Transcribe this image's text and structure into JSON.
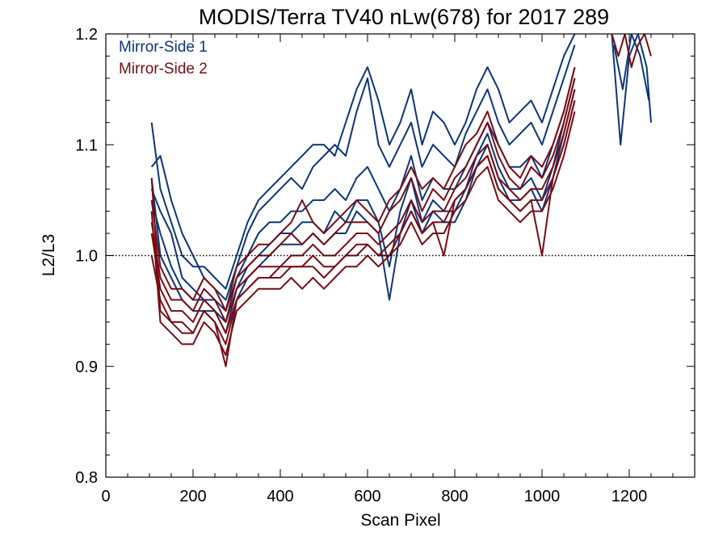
{
  "chart_data": {
    "type": "line",
    "title": "MODIS/Terra TV40 nLw(678) for 2017 289",
    "xlabel": "Scan Pixel",
    "ylabel": "L2/L3",
    "xlim": [
      0,
      1350
    ],
    "ylim": [
      0.8,
      1.2
    ],
    "x_ticks": [
      0,
      200,
      400,
      600,
      800,
      1000,
      1200
    ],
    "y_ticks": [
      0.8,
      0.9,
      1.0,
      1.1,
      1.2
    ],
    "reference_line": {
      "y": 1.0,
      "style": "dotted"
    },
    "grid": false,
    "legend_position": "top-left",
    "colors": {
      "mirror_side_1": "#0c3577",
      "mirror_side_2": "#780c14"
    },
    "series": [
      {
        "name": "Mirror-Side 1",
        "color": "#0c3577",
        "lines": [
          {
            "x": [
              105,
              125,
              150,
              175,
              200,
              225,
              250,
              275,
              300,
              325,
              350,
              375,
              400,
              425,
              450,
              475,
              500,
              525,
              550,
              575,
              600,
              625,
              650,
              675,
              700,
              725,
              750,
              775,
              800,
              825,
              850,
              875,
              900,
              925,
              950,
              975,
              1000,
              1025,
              1050,
              1075
            ],
            "y": [
              1.12,
              1.06,
              1.03,
              1.0,
              0.99,
              0.99,
              0.98,
              0.97,
              1.0,
              1.03,
              1.05,
              1.06,
              1.07,
              1.08,
              1.09,
              1.1,
              1.1,
              1.09,
              1.12,
              1.15,
              1.17,
              1.14,
              1.1,
              1.12,
              1.15,
              1.1,
              1.13,
              1.12,
              1.1,
              1.12,
              1.15,
              1.17,
              1.15,
              1.12,
              1.13,
              1.14,
              1.12,
              1.15,
              1.18,
              1.2
            ]
          },
          {
            "x": [
              105,
              125,
              150,
              175,
              200,
              225,
              250,
              275,
              300,
              325,
              350,
              375,
              400,
              425,
              450,
              475,
              500,
              525,
              550,
              575,
              600,
              625,
              650,
              675,
              700,
              725,
              750,
              775,
              800,
              825,
              850,
              875,
              900,
              925,
              950,
              975,
              1000,
              1025,
              1050,
              1075
            ],
            "y": [
              1.08,
              1.09,
              1.05,
              1.02,
              1.0,
              0.98,
              0.97,
              0.96,
              0.99,
              1.02,
              1.04,
              1.05,
              1.06,
              1.07,
              1.06,
              1.08,
              1.09,
              1.1,
              1.09,
              1.13,
              1.16,
              1.1,
              1.08,
              1.1,
              1.12,
              1.08,
              1.1,
              1.09,
              1.08,
              1.11,
              1.13,
              1.15,
              1.12,
              1.1,
              1.11,
              1.12,
              1.1,
              1.13,
              1.16,
              1.19
            ]
          },
          {
            "x": [
              105,
              125,
              150,
              175,
              200,
              225,
              250,
              275,
              300,
              325,
              350,
              375,
              400,
              425,
              450,
              475,
              500,
              525,
              550,
              575,
              600,
              625,
              650,
              675,
              700,
              725,
              750,
              775,
              800,
              825,
              850,
              875,
              900,
              925,
              950,
              975,
              1000,
              1025,
              1050,
              1075
            ],
            "y": [
              1.06,
              1.04,
              1.02,
              0.98,
              0.97,
              0.96,
              0.96,
              0.95,
              0.98,
              1.0,
              1.02,
              1.03,
              1.03,
              1.04,
              1.04,
              1.05,
              1.05,
              1.06,
              1.05,
              1.07,
              1.08,
              1.06,
              1.04,
              1.06,
              1.09,
              1.05,
              1.07,
              1.06,
              1.06,
              1.08,
              1.1,
              1.12,
              1.1,
              1.08,
              1.08,
              1.09,
              1.07,
              1.1,
              1.13,
              1.17
            ]
          },
          {
            "x": [
              105,
              125,
              150,
              175,
              200,
              225,
              250,
              275,
              300,
              325,
              350,
              375,
              400,
              425,
              450,
              475,
              500,
              525,
              550,
              575,
              600,
              625,
              650,
              675,
              700,
              725,
              750,
              775,
              800,
              825,
              850,
              875,
              900,
              925,
              950,
              975,
              1000,
              1025,
              1050,
              1075
            ],
            "y": [
              1.05,
              1.02,
              0.99,
              0.97,
              0.96,
              0.96,
              0.95,
              0.94,
              0.97,
              0.99,
              1.0,
              1.01,
              1.02,
              1.02,
              1.03,
              1.03,
              1.02,
              1.04,
              1.03,
              1.05,
              1.05,
              1.03,
              0.99,
              1.04,
              1.07,
              1.03,
              1.05,
              1.04,
              1.04,
              1.06,
              1.09,
              1.11,
              1.08,
              1.06,
              1.06,
              1.07,
              1.05,
              1.08,
              1.12,
              1.16
            ]
          },
          {
            "x": [
              105,
              125,
              150,
              175,
              200,
              225,
              250,
              275,
              300,
              325,
              350,
              375,
              400,
              425,
              450,
              475,
              500,
              525,
              550,
              575,
              600,
              625,
              650,
              675,
              700,
              725,
              750,
              775,
              800,
              825,
              850,
              875,
              900,
              925,
              950,
              975,
              1000,
              1025,
              1050,
              1075
            ],
            "y": [
              1.07,
              1.0,
              0.98,
              0.96,
              0.95,
              0.95,
              0.95,
              0.93,
              0.96,
              0.98,
              0.99,
              1.0,
              1.01,
              1.01,
              1.01,
              1.02,
              1.01,
              1.02,
              1.02,
              1.04,
              1.03,
              1.02,
              0.96,
              1.02,
              1.05,
              1.02,
              1.04,
              1.03,
              1.03,
              1.05,
              1.08,
              1.1,
              1.07,
              1.05,
              1.05,
              1.06,
              1.04,
              1.07,
              1.11,
              1.15
            ]
          },
          {
            "x": [
              1160,
              1180,
              1200,
              1220,
              1240,
              1250
            ],
            "y": [
              1.2,
              1.1,
              1.18,
              1.2,
              1.17,
              1.12
            ]
          },
          {
            "x": [
              1165,
              1185,
              1205,
              1225,
              1245
            ],
            "y": [
              1.19,
              1.15,
              1.2,
              1.18,
              1.14
            ]
          }
        ]
      },
      {
        "name": "Mirror-Side 2",
        "color": "#780c14",
        "lines": [
          {
            "x": [
              105,
              125,
              150,
              175,
              200,
              225,
              250,
              275,
              300,
              325,
              350,
              375,
              400,
              425,
              450,
              475,
              500,
              525,
              550,
              575,
              600,
              625,
              650,
              675,
              700,
              725,
              750,
              775,
              800,
              825,
              850,
              875,
              900,
              925,
              950,
              975,
              1000,
              1025,
              1050,
              1075
            ],
            "y": [
              1.07,
              0.95,
              0.94,
              0.94,
              0.93,
              0.95,
              0.94,
              0.92,
              0.96,
              0.97,
              0.98,
              0.98,
              0.98,
              0.99,
              0.99,
              0.99,
              0.98,
              0.99,
              1.0,
              1.0,
              1.01,
              1.0,
              1.0,
              1.02,
              1.04,
              1.02,
              1.03,
              1.03,
              1.05,
              1.06,
              1.08,
              1.09,
              1.06,
              1.05,
              1.04,
              1.05,
              1.05,
              1.07,
              1.1,
              1.14
            ]
          },
          {
            "x": [
              105,
              125,
              150,
              175,
              200,
              225,
              250,
              275,
              300,
              325,
              350,
              375,
              400,
              425,
              450,
              475,
              500,
              525,
              550,
              575,
              600,
              625,
              650,
              675,
              700,
              725,
              750,
              775,
              800,
              825,
              850,
              875,
              900,
              925,
              950,
              975,
              1000,
              1025,
              1050,
              1075
            ],
            "y": [
              1.04,
              0.94,
              0.93,
              0.92,
              0.92,
              0.94,
              0.93,
              0.91,
              0.95,
              0.96,
              0.97,
              0.97,
              0.97,
              0.98,
              0.97,
              0.98,
              0.97,
              0.98,
              0.99,
              0.99,
              1.0,
              0.99,
              1.0,
              1.01,
              1.03,
              1.01,
              1.02,
              1.02,
              1.04,
              1.05,
              1.07,
              1.08,
              1.05,
              1.04,
              1.03,
              1.04,
              1.04,
              1.06,
              1.09,
              1.13
            ]
          },
          {
            "x": [
              105,
              125,
              150,
              175,
              200,
              225,
              250,
              275,
              300,
              325,
              350,
              375,
              400,
              425,
              450,
              475,
              500,
              525,
              550,
              575,
              600,
              625,
              650,
              675,
              700,
              725,
              750,
              775,
              800,
              825,
              850,
              875,
              900,
              925,
              950,
              975,
              1000,
              1025,
              1050,
              1075
            ],
            "y": [
              1.02,
              0.97,
              0.95,
              0.95,
              0.94,
              0.96,
              0.95,
              0.93,
              0.97,
              0.98,
              0.99,
              0.99,
              0.99,
              1.0,
              1.0,
              1.01,
              1.0,
              1.0,
              1.01,
              1.02,
              1.02,
              1.01,
              1.02,
              1.03,
              1.05,
              1.03,
              1.04,
              1.04,
              1.06,
              1.07,
              1.09,
              1.1,
              1.07,
              1.06,
              1.05,
              1.06,
              1.06,
              1.08,
              1.11,
              1.15
            ]
          },
          {
            "x": [
              105,
              125,
              150,
              175,
              200,
              225,
              250,
              275,
              300,
              325,
              350,
              375,
              400,
              425,
              450,
              475,
              500,
              525,
              550,
              575,
              600,
              625,
              650,
              675,
              700,
              725,
              750,
              775,
              800,
              825,
              850,
              875,
              900,
              925,
              950,
              975,
              1000,
              1025,
              1050,
              1075
            ],
            "y": [
              1.0,
              0.96,
              0.94,
              0.93,
              0.93,
              0.95,
              0.94,
              0.9,
              0.96,
              0.97,
              0.98,
              0.98,
              0.99,
              0.99,
              0.99,
              1.0,
              0.99,
              0.99,
              1.0,
              1.01,
              1.01,
              1.0,
              1.01,
              1.02,
              1.04,
              1.02,
              1.03,
              1.0,
              1.05,
              1.06,
              1.08,
              1.09,
              1.06,
              1.05,
              1.04,
              1.05,
              1.0,
              1.07,
              1.1,
              1.14
            ]
          },
          {
            "x": [
              105,
              125,
              150,
              175,
              200,
              225,
              250,
              275,
              300,
              325,
              350,
              375,
              400,
              425,
              450,
              475,
              500,
              525,
              550,
              575,
              600,
              625,
              650,
              675,
              700,
              725,
              750,
              775,
              800,
              825,
              850,
              875,
              900,
              925,
              950,
              975,
              1000,
              1025,
              1050,
              1075
            ],
            "y": [
              1.03,
              0.98,
              0.96,
              0.96,
              0.95,
              0.97,
              0.96,
              0.94,
              0.98,
              0.99,
              1.0,
              1.0,
              1.01,
              1.02,
              1.01,
              1.02,
              1.01,
              1.02,
              1.03,
              1.03,
              1.03,
              1.02,
              1.04,
              1.05,
              1.07,
              1.04,
              1.06,
              1.05,
              1.07,
              1.08,
              1.1,
              1.12,
              1.09,
              1.07,
              1.06,
              1.08,
              1.07,
              1.09,
              1.12,
              1.16
            ]
          },
          {
            "x": [
              105,
              125,
              150,
              175,
              200,
              225,
              250,
              275,
              300,
              325,
              350,
              375,
              400,
              425,
              450,
              475,
              500,
              525,
              550,
              575,
              600,
              625,
              650,
              675,
              700,
              725,
              750,
              775,
              800,
              825,
              850,
              875,
              900,
              925,
              950,
              975,
              1000,
              1025,
              1050,
              1075
            ],
            "y": [
              1.05,
              0.99,
              0.97,
              0.97,
              0.96,
              0.98,
              0.97,
              0.95,
              0.99,
              1.0,
              1.01,
              1.01,
              1.02,
              1.03,
              1.05,
              1.03,
              1.02,
              1.03,
              1.04,
              1.05,
              1.04,
              1.03,
              1.05,
              1.06,
              1.08,
              1.06,
              1.07,
              1.06,
              1.08,
              1.1,
              1.11,
              1.13,
              1.1,
              1.08,
              1.07,
              1.09,
              1.08,
              1.1,
              1.13,
              1.17
            ]
          },
          {
            "x": [
              1160,
              1175,
              1190,
              1205,
              1220,
              1235,
              1250
            ],
            "y": [
              1.2,
              1.18,
              1.2,
              1.17,
              1.19,
              1.2,
              1.18
            ]
          }
        ]
      }
    ]
  }
}
